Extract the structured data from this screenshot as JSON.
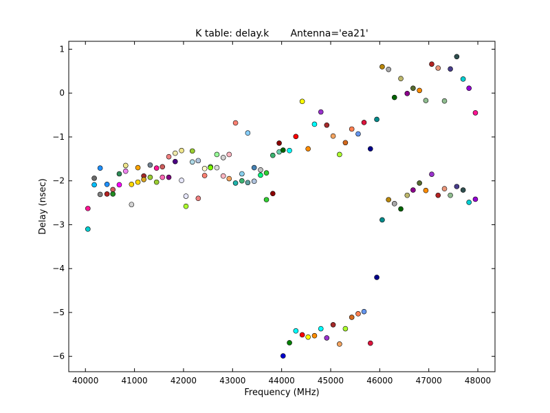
{
  "chart_data": {
    "type": "scatter",
    "title": "K table: delay.k       Antenna='ea21'",
    "xlabel": "Frequency (MHz)",
    "ylabel": "Delay (nsec)",
    "xlim": [
      39660,
      48350
    ],
    "ylim": [
      -6.35,
      1.18
    ],
    "xticks": [
      40000,
      41000,
      42000,
      43000,
      44000,
      45000,
      46000,
      47000,
      48000
    ],
    "yticks": [
      1,
      0,
      -1,
      -2,
      -3,
      -4,
      -5,
      -6
    ],
    "xtick_labels": [
      "40000",
      "41000",
      "42000",
      "43000",
      "44000",
      "45000",
      "46000",
      "47000",
      "48000"
    ],
    "ytick_labels": [
      "1",
      "0",
      "−1",
      "−2",
      "−3",
      "−4",
      "−5",
      "−6"
    ],
    "grid": false,
    "legend": "none",
    "points": [
      {
        "x": 40050,
        "y": -2.63,
        "color": "#ff1493"
      },
      {
        "x": 40050,
        "y": -3.1,
        "color": "#00ced1"
      },
      {
        "x": 40180,
        "y": -1.94,
        "color": "#696969"
      },
      {
        "x": 40180,
        "y": -2.09,
        "color": "#00bfff"
      },
      {
        "x": 40300,
        "y": -1.71,
        "color": "#1e90ff"
      },
      {
        "x": 40300,
        "y": -2.31,
        "color": "#808080"
      },
      {
        "x": 40440,
        "y": -2.08,
        "color": "#1e90ff"
      },
      {
        "x": 40440,
        "y": -2.3,
        "color": "#b22222"
      },
      {
        "x": 40560,
        "y": -2.2,
        "color": "#cd5c5c"
      },
      {
        "x": 40560,
        "y": -2.3,
        "color": "#228b22"
      },
      {
        "x": 40690,
        "y": -1.84,
        "color": "#2e8b57"
      },
      {
        "x": 40690,
        "y": -2.09,
        "color": "#ff00ff"
      },
      {
        "x": 40820,
        "y": -1.65,
        "color": "#f0e68c"
      },
      {
        "x": 40820,
        "y": -1.78,
        "color": "#ee82ee"
      },
      {
        "x": 40940,
        "y": -2.08,
        "color": "#ffd700"
      },
      {
        "x": 40940,
        "y": -2.54,
        "color": "#d3d3d3"
      },
      {
        "x": 41070,
        "y": -1.7,
        "color": "#ffa500"
      },
      {
        "x": 41070,
        "y": -2.03,
        "color": "#ffd700"
      },
      {
        "x": 41190,
        "y": -1.89,
        "color": "#a52a2a"
      },
      {
        "x": 41190,
        "y": -1.97,
        "color": "#daa520"
      },
      {
        "x": 41320,
        "y": -1.64,
        "color": "#708090"
      },
      {
        "x": 41320,
        "y": -1.92,
        "color": "#9acd32"
      },
      {
        "x": 41450,
        "y": -1.71,
        "color": "#ff1493"
      },
      {
        "x": 41450,
        "y": -2.03,
        "color": "#9acd32"
      },
      {
        "x": 41570,
        "y": -1.68,
        "color": "#cd5c5c"
      },
      {
        "x": 41570,
        "y": -1.92,
        "color": "#ff69b4"
      },
      {
        "x": 41700,
        "y": -1.45,
        "color": "#f08080"
      },
      {
        "x": 41700,
        "y": -1.92,
        "color": "#800080"
      },
      {
        "x": 41830,
        "y": -1.37,
        "color": "#eee8aa"
      },
      {
        "x": 41830,
        "y": -1.56,
        "color": "#4b0082"
      },
      {
        "x": 41960,
        "y": -1.31,
        "color": "#f0e68c"
      },
      {
        "x": 41960,
        "y": -1.99,
        "color": "#e6e6fa"
      },
      {
        "x": 42050,
        "y": -2.35,
        "color": "#e6e6fa"
      },
      {
        "x": 42050,
        "y": -2.58,
        "color": "#adff2f"
      },
      {
        "x": 42180,
        "y": -1.32,
        "color": "#9acd32"
      },
      {
        "x": 42180,
        "y": -1.57,
        "color": "#add8e6"
      },
      {
        "x": 42300,
        "y": -1.54,
        "color": "#b0c4de"
      },
      {
        "x": 42300,
        "y": -2.4,
        "color": "#f08080"
      },
      {
        "x": 42430,
        "y": -1.72,
        "color": "#fffacd"
      },
      {
        "x": 42430,
        "y": -1.88,
        "color": "#fa8072"
      },
      {
        "x": 42550,
        "y": -1.68,
        "color": "#98fb98"
      },
      {
        "x": 42550,
        "y": -1.7,
        "color": "#7cfc00"
      },
      {
        "x": 42680,
        "y": -1.4,
        "color": "#98fb98"
      },
      {
        "x": 42680,
        "y": -1.7,
        "color": "#dcdcdc"
      },
      {
        "x": 42810,
        "y": -1.47,
        "color": "#d3d3d3"
      },
      {
        "x": 42810,
        "y": -1.89,
        "color": "#ffb6c1"
      },
      {
        "x": 42930,
        "y": -1.4,
        "color": "#ffb6c1"
      },
      {
        "x": 42930,
        "y": -1.95,
        "color": "#f4a460"
      },
      {
        "x": 43060,
        "y": -0.68,
        "color": "#fa8072"
      },
      {
        "x": 43060,
        "y": -2.05,
        "color": "#20b2aa"
      },
      {
        "x": 43190,
        "y": -1.84,
        "color": "#87ceeb"
      },
      {
        "x": 43190,
        "y": -2.0,
        "color": "#3cb371"
      },
      {
        "x": 43310,
        "y": -0.91,
        "color": "#87cefa"
      },
      {
        "x": 43310,
        "y": -2.04,
        "color": "#5f9ea0"
      },
      {
        "x": 43440,
        "y": -1.7,
        "color": "#4682b4"
      },
      {
        "x": 43440,
        "y": -2.01,
        "color": "#b0c4de"
      },
      {
        "x": 43570,
        "y": -1.75,
        "color": "#c0c0c0"
      },
      {
        "x": 43570,
        "y": -1.87,
        "color": "#00ff7f"
      },
      {
        "x": 43690,
        "y": -1.82,
        "color": "#32cd32"
      },
      {
        "x": 43690,
        "y": -2.43,
        "color": "#32cd32"
      },
      {
        "x": 43820,
        "y": -1.42,
        "color": "#3cb371"
      },
      {
        "x": 43820,
        "y": -2.29,
        "color": "#8b0000"
      },
      {
        "x": 43950,
        "y": -1.14,
        "color": "#8b0000"
      },
      {
        "x": 43950,
        "y": -1.34,
        "color": "#66cdaa"
      },
      {
        "x": 44030,
        "y": -1.3,
        "color": "#006400"
      },
      {
        "x": 44030,
        "y": -5.99,
        "color": "#0000cd"
      },
      {
        "x": 44160,
        "y": -1.31,
        "color": "#00ffff"
      },
      {
        "x": 44160,
        "y": -5.69,
        "color": "#008000"
      },
      {
        "x": 44290,
        "y": -0.99,
        "color": "#ff0000"
      },
      {
        "x": 44290,
        "y": -5.42,
        "color": "#00ffff"
      },
      {
        "x": 44420,
        "y": -0.19,
        "color": "#ffff00"
      },
      {
        "x": 44420,
        "y": -5.51,
        "color": "#ff0000"
      },
      {
        "x": 44540,
        "y": -1.27,
        "color": "#ff8c00"
      },
      {
        "x": 44540,
        "y": -5.56,
        "color": "#ffff00"
      },
      {
        "x": 44670,
        "y": -0.71,
        "color": "#00ffff"
      },
      {
        "x": 44670,
        "y": -5.53,
        "color": "#ff8c00"
      },
      {
        "x": 44800,
        "y": -0.43,
        "color": "#9932cc"
      },
      {
        "x": 44800,
        "y": -5.37,
        "color": "#00ffff"
      },
      {
        "x": 44920,
        "y": -0.73,
        "color": "#a52a2a"
      },
      {
        "x": 44920,
        "y": -5.58,
        "color": "#9932cc"
      },
      {
        "x": 45050,
        "y": -0.98,
        "color": "#f4a460"
      },
      {
        "x": 45050,
        "y": -5.28,
        "color": "#a52a2a"
      },
      {
        "x": 45180,
        "y": -1.4,
        "color": "#adff2f"
      },
      {
        "x": 45180,
        "y": -5.72,
        "color": "#f4a460"
      },
      {
        "x": 45300,
        "y": -1.13,
        "color": "#d2691e"
      },
      {
        "x": 45300,
        "y": -5.37,
        "color": "#adff2f"
      },
      {
        "x": 45430,
        "y": -0.82,
        "color": "#ff7f50"
      },
      {
        "x": 45430,
        "y": -5.11,
        "color": "#d2691e"
      },
      {
        "x": 45560,
        "y": -0.93,
        "color": "#6495ed"
      },
      {
        "x": 45560,
        "y": -5.03,
        "color": "#ff7f50"
      },
      {
        "x": 45680,
        "y": -0.67,
        "color": "#dc143c"
      },
      {
        "x": 45680,
        "y": -4.98,
        "color": "#6495ed"
      },
      {
        "x": 45810,
        "y": -1.27,
        "color": "#00008b"
      },
      {
        "x": 45810,
        "y": -5.7,
        "color": "#dc143c"
      },
      {
        "x": 45940,
        "y": -0.6,
        "color": "#008b8b"
      },
      {
        "x": 45940,
        "y": -4.2,
        "color": "#00008b"
      },
      {
        "x": 46050,
        "y": 0.6,
        "color": "#b8860b"
      },
      {
        "x": 46050,
        "y": -2.89,
        "color": "#008b8b"
      },
      {
        "x": 46180,
        "y": 0.54,
        "color": "#a9a9a9"
      },
      {
        "x": 46180,
        "y": -2.43,
        "color": "#b8860b"
      },
      {
        "x": 46300,
        "y": -0.1,
        "color": "#006400"
      },
      {
        "x": 46300,
        "y": -2.52,
        "color": "#a9a9a9"
      },
      {
        "x": 46430,
        "y": 0.33,
        "color": "#bdb76b"
      },
      {
        "x": 46430,
        "y": -2.64,
        "color": "#006400"
      },
      {
        "x": 46560,
        "y": -0.01,
        "color": "#8b008b"
      },
      {
        "x": 46560,
        "y": -2.33,
        "color": "#bdb76b"
      },
      {
        "x": 46680,
        "y": 0.11,
        "color": "#556b2f"
      },
      {
        "x": 46680,
        "y": -2.21,
        "color": "#8b008b"
      },
      {
        "x": 46810,
        "y": 0.06,
        "color": "#ff8c00"
      },
      {
        "x": 46810,
        "y": -2.05,
        "color": "#556b2f"
      },
      {
        "x": 46940,
        "y": -0.17,
        "color": "#8fbc8f"
      },
      {
        "x": 46940,
        "y": -2.22,
        "color": "#ff8c00"
      },
      {
        "x": 47060,
        "y": 0.66,
        "color": "#b22222"
      },
      {
        "x": 47060,
        "y": -1.85,
        "color": "#9932cc"
      },
      {
        "x": 47190,
        "y": 0.57,
        "color": "#e9967a"
      },
      {
        "x": 47190,
        "y": -2.33,
        "color": "#b22222"
      },
      {
        "x": 47320,
        "y": -0.18,
        "color": "#8fbc8f"
      },
      {
        "x": 47320,
        "y": -2.18,
        "color": "#e9967a"
      },
      {
        "x": 47440,
        "y": 0.55,
        "color": "#483d8b"
      },
      {
        "x": 47440,
        "y": -2.33,
        "color": "#8fbc8f"
      },
      {
        "x": 47570,
        "y": 0.83,
        "color": "#2f4f4f"
      },
      {
        "x": 47570,
        "y": -2.13,
        "color": "#483d8b"
      },
      {
        "x": 47700,
        "y": 0.32,
        "color": "#00ced1"
      },
      {
        "x": 47700,
        "y": -2.21,
        "color": "#2f4f4f"
      },
      {
        "x": 47820,
        "y": 0.11,
        "color": "#9400d3"
      },
      {
        "x": 47820,
        "y": -2.49,
        "color": "#00ced1"
      },
      {
        "x": 47950,
        "y": -0.45,
        "color": "#ff1493"
      },
      {
        "x": 47950,
        "y": -2.42,
        "color": "#9400d3"
      }
    ]
  }
}
